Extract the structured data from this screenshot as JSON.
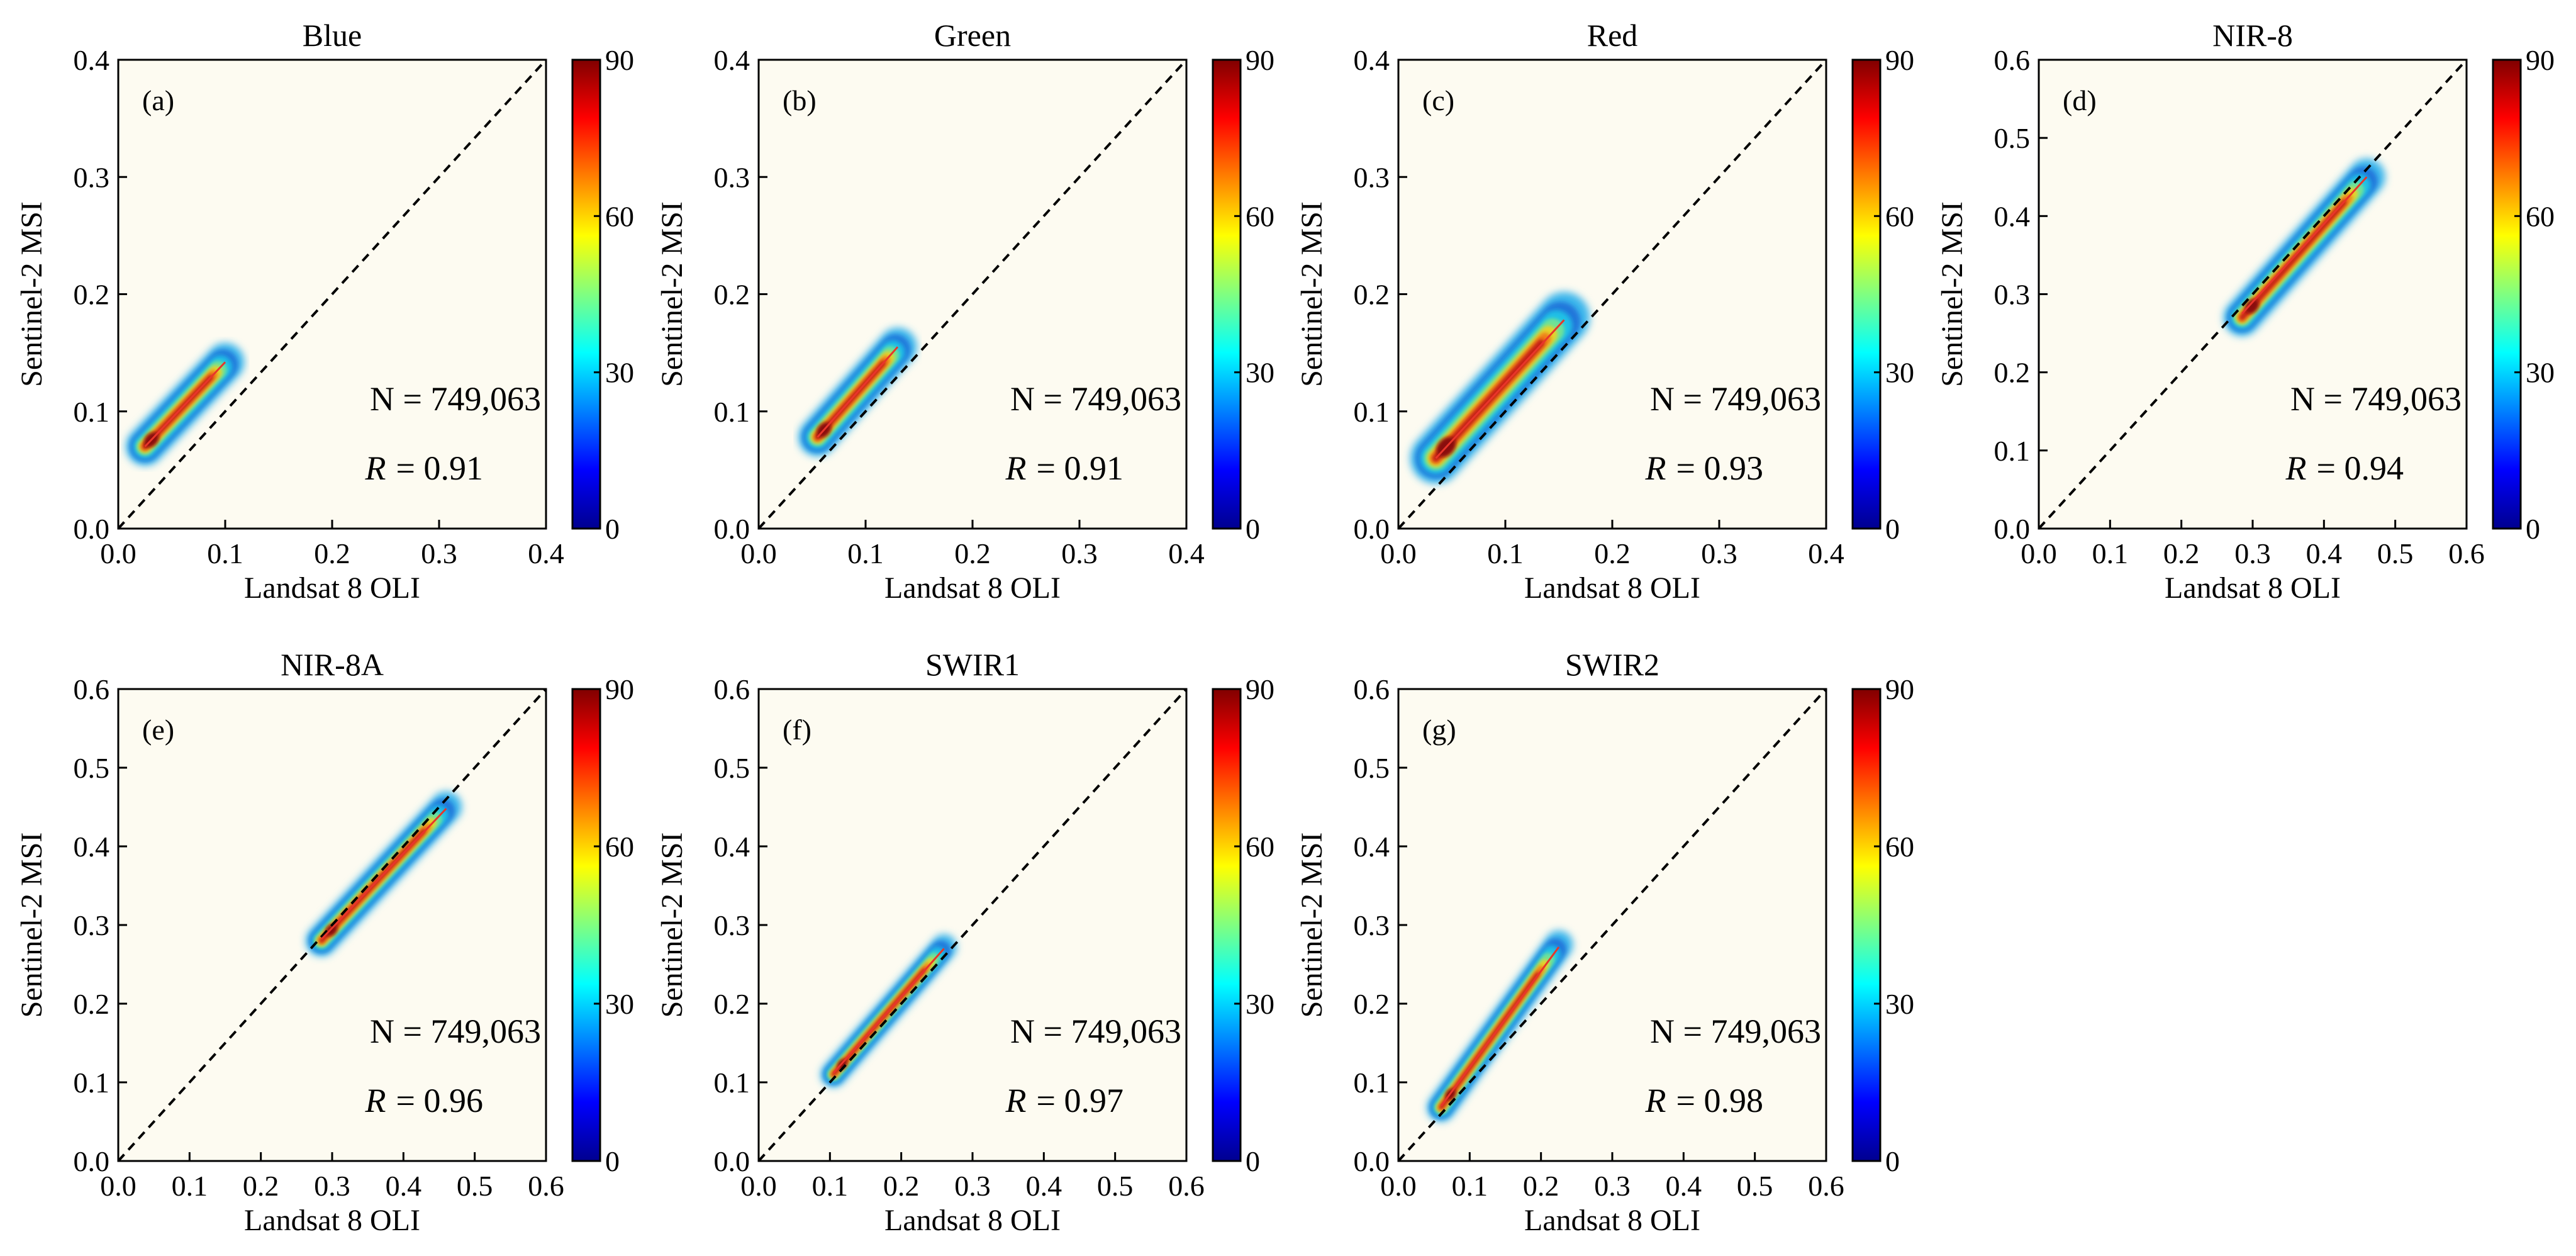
{
  "colors": {
    "plot_bg": "#fdfbf1",
    "axes": "#000000",
    "fit_line": "#e8352a",
    "identity_line": "#000000",
    "colormap": [
      "#00008f",
      "#0000ff",
      "#0080ff",
      "#00ffff",
      "#80ff80",
      "#ffff00",
      "#ff8000",
      "#ff0000",
      "#800000"
    ]
  },
  "chart_data": [
    {
      "id": "a",
      "type": "scatter",
      "title": "Blue",
      "panel_label": "(a)",
      "xlabel": "Landsat 8 OLI",
      "ylabel": "Sentinel-2 MSI",
      "xlim": [
        0.0,
        0.4
      ],
      "ylim": [
        0.0,
        0.4
      ],
      "xticks": [
        "0.0",
        "0.1",
        "0.2",
        "0.3",
        "0.4"
      ],
      "yticks": [
        "0.0",
        "0.1",
        "0.2",
        "0.3",
        "0.4"
      ],
      "colorbar": {
        "min": 0,
        "max": 90,
        "ticks": [
          "0",
          "30",
          "60",
          "90"
        ]
      },
      "n_text": "N = 749,063",
      "r_label": "R",
      "r_value": "= 0.91",
      "cloud": [
        {
          "x0": 0.025,
          "y0": 0.07,
          "x1": 0.1,
          "y1": 0.142
        }
      ],
      "halfwidth": 0.018,
      "fit": {
        "x0": 0.025,
        "y0": 0.07,
        "x1": 0.1,
        "y1": 0.142
      }
    },
    {
      "id": "b",
      "type": "scatter",
      "title": "Green",
      "panel_label": "(b)",
      "xlabel": "Landsat 8 OLI",
      "ylabel": "Sentinel-2 MSI",
      "xlim": [
        0.0,
        0.4
      ],
      "ylim": [
        0.0,
        0.4
      ],
      "xticks": [
        "0.0",
        "0.1",
        "0.2",
        "0.3",
        "0.4"
      ],
      "yticks": [
        "0.0",
        "0.1",
        "0.2",
        "0.3",
        "0.4"
      ],
      "colorbar": {
        "min": 0,
        "max": 90,
        "ticks": [
          "0",
          "30",
          "60",
          "90"
        ]
      },
      "n_text": "N = 749,063",
      "r_label": "R",
      "r_value": "= 0.91",
      "cloud": [
        {
          "x0": 0.055,
          "y0": 0.078,
          "x1": 0.13,
          "y1": 0.155
        }
      ],
      "halfwidth": 0.018,
      "fit": {
        "x0": 0.055,
        "y0": 0.078,
        "x1": 0.13,
        "y1": 0.155
      }
    },
    {
      "id": "c",
      "type": "scatter",
      "title": "Red",
      "panel_label": "(c)",
      "xlabel": "Landsat 8 OLI",
      "ylabel": "Sentinel-2 MSI",
      "xlim": [
        0.0,
        0.4
      ],
      "ylim": [
        0.0,
        0.4
      ],
      "xticks": [
        "0.0",
        "0.1",
        "0.2",
        "0.3",
        "0.4"
      ],
      "yticks": [
        "0.0",
        "0.1",
        "0.2",
        "0.3",
        "0.4"
      ],
      "colorbar": {
        "min": 0,
        "max": 90,
        "ticks": [
          "0",
          "30",
          "60",
          "90"
        ]
      },
      "n_text": "N = 749,063",
      "r_label": "R",
      "r_value": "= 0.93",
      "cloud": [
        {
          "x0": 0.035,
          "y0": 0.06,
          "x1": 0.155,
          "y1": 0.18
        }
      ],
      "halfwidth": 0.024,
      "fit": {
        "x0": 0.035,
        "y0": 0.06,
        "x1": 0.155,
        "y1": 0.178
      }
    },
    {
      "id": "d",
      "type": "scatter",
      "title": "NIR-8",
      "panel_label": "(d)",
      "xlabel": "Landsat 8 OLI",
      "ylabel": "Sentinel-2 MSI",
      "xlim": [
        0.0,
        0.6
      ],
      "ylim": [
        0.0,
        0.6
      ],
      "xticks": [
        "0.0",
        "0.1",
        "0.2",
        "0.3",
        "0.4",
        "0.5",
        "0.6"
      ],
      "yticks": [
        "0.0",
        "0.1",
        "0.2",
        "0.3",
        "0.4",
        "0.5",
        "0.6"
      ],
      "colorbar": {
        "min": 0,
        "max": 90,
        "ticks": [
          "0",
          "30",
          "60",
          "90"
        ]
      },
      "n_text": "N = 749,063",
      "r_label": "R",
      "r_value": "= 0.94",
      "cloud": [
        {
          "x0": 0.285,
          "y0": 0.27,
          "x1": 0.46,
          "y1": 0.45
        }
      ],
      "halfwidth": 0.026,
      "fit": {
        "x0": 0.285,
        "y0": 0.275,
        "x1": 0.46,
        "y1": 0.45
      }
    },
    {
      "id": "e",
      "type": "scatter",
      "title": "NIR-8A",
      "panel_label": "(e)",
      "xlabel": "Landsat 8 OLI",
      "ylabel": "Sentinel-2 MSI",
      "xlim": [
        0.0,
        0.6
      ],
      "ylim": [
        0.0,
        0.6
      ],
      "xticks": [
        "0.0",
        "0.1",
        "0.2",
        "0.3",
        "0.4",
        "0.5",
        "0.6"
      ],
      "yticks": [
        "0.0",
        "0.1",
        "0.2",
        "0.3",
        "0.4",
        "0.5",
        "0.6"
      ],
      "colorbar": {
        "min": 0,
        "max": 90,
        "ticks": [
          "0",
          "30",
          "60",
          "90"
        ]
      },
      "n_text": "N = 749,063",
      "r_label": "R",
      "r_value": "= 0.96",
      "cloud": [
        {
          "x0": 0.285,
          "y0": 0.28,
          "x1": 0.46,
          "y1": 0.45
        }
      ],
      "halfwidth": 0.022,
      "fit": {
        "x0": 0.285,
        "y0": 0.282,
        "x1": 0.46,
        "y1": 0.448
      }
    },
    {
      "id": "f",
      "type": "scatter",
      "title": "SWIR1",
      "panel_label": "(f)",
      "xlabel": "Landsat 8 OLI",
      "ylabel": "Sentinel-2 MSI",
      "xlim": [
        0.0,
        0.6
      ],
      "ylim": [
        0.0,
        0.6
      ],
      "xticks": [
        "0.0",
        "0.1",
        "0.2",
        "0.3",
        "0.4",
        "0.5",
        "0.6"
      ],
      "yticks": [
        "0.0",
        "0.1",
        "0.2",
        "0.3",
        "0.4",
        "0.5",
        "0.6"
      ],
      "colorbar": {
        "min": 0,
        "max": 90,
        "ticks": [
          "0",
          "30",
          "60",
          "90"
        ]
      },
      "n_text": "N = 749,063",
      "r_label": "R",
      "r_value": "= 0.97",
      "cloud": [
        {
          "x0": 0.105,
          "y0": 0.11,
          "x1": 0.26,
          "y1": 0.272
        }
      ],
      "halfwidth": 0.018,
      "fit": {
        "x0": 0.105,
        "y0": 0.112,
        "x1": 0.26,
        "y1": 0.27
      }
    },
    {
      "id": "g",
      "type": "scatter",
      "title": "SWIR2",
      "panel_label": "(g)",
      "xlabel": "Landsat 8 OLI",
      "ylabel": "Sentinel-2 MSI",
      "xlim": [
        0.0,
        0.6
      ],
      "ylim": [
        0.0,
        0.6
      ],
      "xticks": [
        "0.0",
        "0.1",
        "0.2",
        "0.3",
        "0.4",
        "0.5",
        "0.6"
      ],
      "yticks": [
        "0.0",
        "0.1",
        "0.2",
        "0.3",
        "0.4",
        "0.5",
        "0.6"
      ],
      "colorbar": {
        "min": 0,
        "max": 90,
        "ticks": [
          "0",
          "30",
          "60",
          "90"
        ]
      },
      "n_text": "N = 749,063",
      "r_label": "R",
      "r_value": "= 0.98",
      "cloud": [
        {
          "x0": 0.06,
          "y0": 0.068,
          "x1": 0.225,
          "y1": 0.275
        }
      ],
      "halfwidth": 0.02,
      "fit": {
        "x0": 0.06,
        "y0": 0.07,
        "x1": 0.225,
        "y1": 0.272
      }
    }
  ]
}
